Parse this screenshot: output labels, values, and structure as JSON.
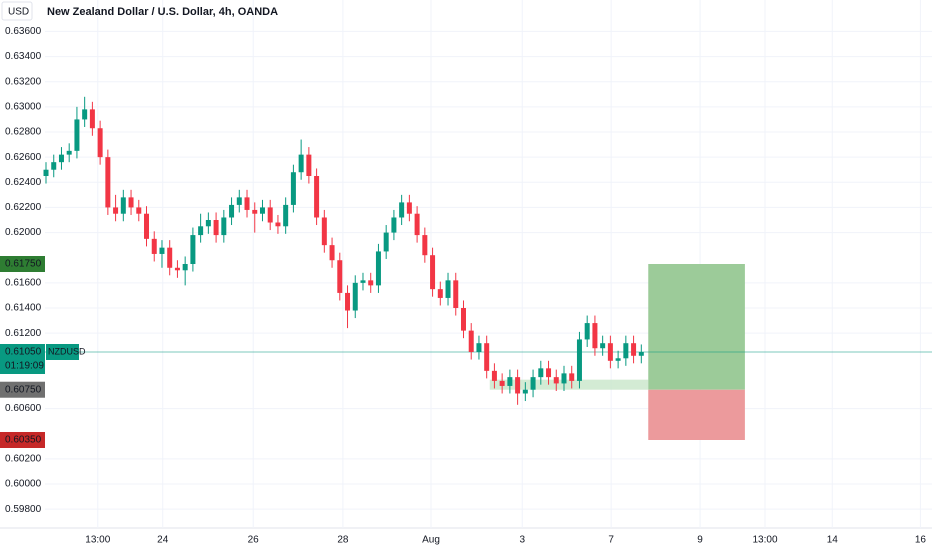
{
  "chart_data": {
    "type": "candlestick",
    "title": "New Zealand Dollar / U.S. Dollar, 4h, OANDA",
    "currency": "USD",
    "colors": {
      "up": "#089981",
      "down": "#f23645"
    },
    "open": [
      0.6245,
      0.625,
      0.6256,
      0.6262,
      0.6265,
      0.629,
      0.6298,
      0.6283,
      0.626,
      0.622,
      0.6215,
      0.6228,
      0.622,
      0.6215,
      0.6195,
      0.6183,
      0.6188,
      0.6172,
      0.617,
      0.6175,
      0.6198,
      0.6205,
      0.621,
      0.6198,
      0.6212,
      0.6222,
      0.6228,
      0.6218,
      0.6215,
      0.622,
      0.6208,
      0.6205,
      0.6222,
      0.6248,
      0.6262,
      0.6245,
      0.6212,
      0.619,
      0.6178,
      0.6152,
      0.6138,
      0.616,
      0.6162,
      0.6158,
      0.6185,
      0.62,
      0.6212,
      0.6224,
      0.6215,
      0.6198,
      0.6182,
      0.6155,
      0.6148,
      0.6162,
      0.614,
      0.6122,
      0.6105,
      0.6112,
      0.609,
      0.6082,
      0.6078,
      0.6085,
      0.6072,
      0.6075,
      0.6085,
      0.6092,
      0.6085,
      0.608,
      0.6088,
      0.6082,
      0.6115,
      0.6128,
      0.6108,
      0.6112,
      0.6098,
      0.61,
      0.6112,
      0.6102
    ],
    "high": [
      0.6256,
      0.6262,
      0.6268,
      0.6271,
      0.63,
      0.6308,
      0.6304,
      0.6289,
      0.6266,
      0.623,
      0.6234,
      0.6234,
      0.6226,
      0.6221,
      0.6201,
      0.6194,
      0.6194,
      0.6178,
      0.6181,
      0.6204,
      0.6215,
      0.6216,
      0.6216,
      0.6218,
      0.6228,
      0.6234,
      0.6234,
      0.6224,
      0.6226,
      0.6226,
      0.6214,
      0.6228,
      0.6254,
      0.6274,
      0.6268,
      0.6251,
      0.6218,
      0.6196,
      0.6184,
      0.6158,
      0.6166,
      0.6168,
      0.6168,
      0.6191,
      0.6206,
      0.6218,
      0.623,
      0.623,
      0.6221,
      0.6204,
      0.6188,
      0.6161,
      0.6168,
      0.6168,
      0.6146,
      0.6128,
      0.6118,
      0.6118,
      0.6096,
      0.6088,
      0.6091,
      0.6091,
      0.6081,
      0.6091,
      0.6098,
      0.6098,
      0.6091,
      0.6094,
      0.6094,
      0.6121,
      0.6134,
      0.6134,
      0.6118,
      0.6118,
      0.6106,
      0.6118,
      0.6118,
      0.6111
    ],
    "low": [
      0.6239,
      0.6244,
      0.625,
      0.6256,
      0.6259,
      0.6284,
      0.6277,
      0.6254,
      0.6214,
      0.6209,
      0.6209,
      0.6214,
      0.6209,
      0.6189,
      0.6177,
      0.6172,
      0.6166,
      0.6164,
      0.6158,
      0.6169,
      0.6192,
      0.6199,
      0.6192,
      0.6192,
      0.6206,
      0.6216,
      0.6212,
      0.62,
      0.6209,
      0.6202,
      0.6199,
      0.6199,
      0.6216,
      0.6242,
      0.6239,
      0.6206,
      0.6184,
      0.6172,
      0.6146,
      0.6124,
      0.6132,
      0.6154,
      0.6152,
      0.6152,
      0.6179,
      0.6194,
      0.6206,
      0.6209,
      0.6192,
      0.6176,
      0.6149,
      0.6142,
      0.6142,
      0.6134,
      0.6116,
      0.6099,
      0.6099,
      0.6084,
      0.6076,
      0.6072,
      0.6072,
      0.6063,
      0.6066,
      0.6069,
      0.6079,
      0.6079,
      0.6074,
      0.6074,
      0.6076,
      0.6076,
      0.6109,
      0.6102,
      0.6102,
      0.6092,
      0.6092,
      0.6094,
      0.6096,
      0.6096
    ],
    "close": [
      0.625,
      0.6256,
      0.6262,
      0.6265,
      0.629,
      0.6298,
      0.6283,
      0.626,
      0.622,
      0.6215,
      0.6228,
      0.622,
      0.6215,
      0.6195,
      0.6183,
      0.6188,
      0.6172,
      0.617,
      0.6175,
      0.6198,
      0.6205,
      0.621,
      0.6198,
      0.6212,
      0.6222,
      0.6228,
      0.6218,
      0.6215,
      0.622,
      0.6208,
      0.6205,
      0.6222,
      0.6248,
      0.6262,
      0.6245,
      0.6212,
      0.619,
      0.6178,
      0.6152,
      0.6138,
      0.616,
      0.6162,
      0.6158,
      0.6185,
      0.62,
      0.6212,
      0.6224,
      0.6215,
      0.6198,
      0.6182,
      0.6155,
      0.6148,
      0.6162,
      0.614,
      0.6122,
      0.6105,
      0.6112,
      0.609,
      0.6082,
      0.6078,
      0.6085,
      0.6072,
      0.6075,
      0.6085,
      0.6092,
      0.6085,
      0.608,
      0.6088,
      0.6082,
      0.6115,
      0.6128,
      0.6108,
      0.6112,
      0.6098,
      0.61,
      0.6112,
      0.6102,
      0.6105
    ],
    "ylim": [
      0.5965,
      0.6385
    ],
    "yticks": [
      {
        "value": 0.636,
        "label": "0.63600"
      },
      {
        "value": 0.634,
        "label": "0.63400"
      },
      {
        "value": 0.632,
        "label": "0.63200"
      },
      {
        "value": 0.63,
        "label": "0.63000"
      },
      {
        "value": 0.628,
        "label": "0.62800"
      },
      {
        "value": 0.626,
        "label": "0.62600"
      },
      {
        "value": 0.624,
        "label": "0.62400"
      },
      {
        "value": 0.622,
        "label": "0.62200"
      },
      {
        "value": 0.62,
        "label": "0.62000"
      },
      {
        "value": 0.616,
        "label": "0.61600"
      },
      {
        "value": 0.614,
        "label": "0.61400"
      },
      {
        "value": 0.612,
        "label": "0.61200"
      },
      {
        "value": 0.606,
        "label": "0.60600"
      },
      {
        "value": 0.602,
        "label": "0.60200"
      },
      {
        "value": 0.6,
        "label": "0.60000"
      },
      {
        "value": 0.598,
        "label": "0.59800"
      }
    ],
    "xlim": [
      -0.13,
      114.6
    ],
    "xticks": [
      {
        "value": 6.7,
        "label": "13:00"
      },
      {
        "value": 15.1,
        "label": "24"
      },
      {
        "value": 26.8,
        "label": "26"
      },
      {
        "value": 38.4,
        "label": "28"
      },
      {
        "value": 49.8,
        "label": "Aug"
      },
      {
        "value": 61.6,
        "label": "3"
      },
      {
        "value": 73.1,
        "label": "7"
      },
      {
        "value": 84.6,
        "label": "9"
      },
      {
        "value": 93.0,
        "label": "13:00"
      },
      {
        "value": 101.7,
        "label": "14"
      },
      {
        "value": 113.1,
        "label": "16"
      }
    ],
    "current_price": {
      "value": 0.6105,
      "label": "0.61050",
      "symbol": "NZDUSD",
      "countdown": "01:19:09",
      "color": "#089981"
    },
    "zone": {
      "x": [
        57.4,
        77.9
      ],
      "y": [
        0.6075,
        0.6083
      ],
      "color": "#c8e6c9"
    },
    "position": {
      "x": [
        77.9,
        90.4
      ],
      "target": {
        "value": 0.6175,
        "label": "0.61750"
      },
      "entry": {
        "value": 0.6075,
        "label": "0.60750"
      },
      "stop": {
        "value": 0.6035,
        "label": "0.60350"
      },
      "colors": {
        "profit": "#9ccb99",
        "loss": "#ec9a9c",
        "target": "#2e7d32",
        "entry": "#707070",
        "stop": "#c62828"
      }
    }
  }
}
